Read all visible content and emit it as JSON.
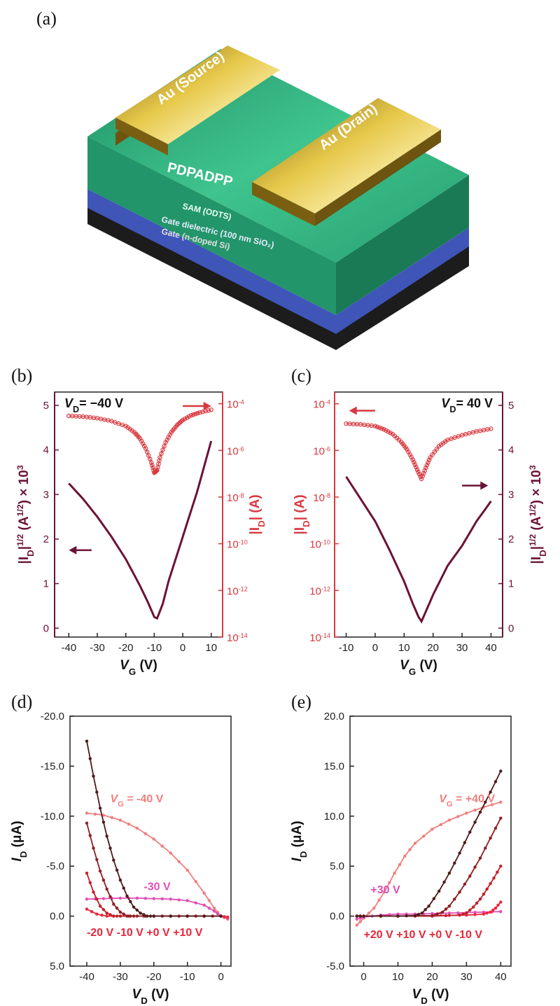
{
  "panels": {
    "a": "(a)",
    "b": "(b)",
    "c": "(c)",
    "d": "(d)",
    "e": "(e)"
  },
  "device": {
    "source_label": "Au (Source)",
    "drain_label": "Au (Drain)",
    "semiconductor_label": "PDPADPP",
    "sam_label": "SAM (ODTS)",
    "dielectric_label": "Gate dielectric (100 nm SiO₂)",
    "gate_label": "Gate (n-doped Si)",
    "colors": {
      "gold": "#c9a227",
      "green": "#2fae7a",
      "blue": "#3f55b8",
      "black": "#1c1c1c"
    }
  },
  "chart_data": [
    {
      "id": "b",
      "type": "line",
      "annotation": "V_D= −40 V",
      "annotation_parts": {
        "v": "V",
        "sub": "D",
        "rest": "= −40 V"
      },
      "xlabel": "V_G (V)",
      "xlabel_parts": {
        "v": "V",
        "sub": "G",
        "rest": " (V)"
      },
      "ylabel_left": "|I_D|^1/2 (A^1/2) × 10^3",
      "ylabel_left_parts": {
        "a": "|I",
        "sub": "D",
        "b": "|",
        "sup1": "1/2",
        "c": " (A",
        "sup2": "1/2",
        "d": ") × 10",
        "sup3": "3"
      },
      "ylabel_right": "|I_D| (A)",
      "ylabel_right_parts": {
        "a": "|I",
        "sub": "D",
        "b": "| (A)"
      },
      "xlim": [
        -45,
        14
      ],
      "xticks": [
        -40,
        -30,
        -20,
        -10,
        0,
        10
      ],
      "xtick_labels": [
        "-40",
        "-30",
        "-20",
        "-10",
        "0",
        "10"
      ],
      "ylim_left": [
        -0.2,
        5.3
      ],
      "yticks_left": [
        0,
        1,
        2,
        3,
        4,
        5
      ],
      "ytick_labels_left": [
        "0",
        "1",
        "2",
        "3",
        "4",
        "5"
      ],
      "ylim_right_exp": [
        -14,
        -3.5
      ],
      "yticks_right_exp": [
        -14,
        -12,
        -10,
        -8,
        -6,
        -4
      ],
      "ytick_labels_right": [
        {
          "base": "10",
          "exp": "-14"
        },
        {
          "base": "10",
          "exp": "-12"
        },
        {
          "base": "10",
          "exp": "-10"
        },
        {
          "base": "10",
          "exp": "-8"
        },
        {
          "base": "10",
          "exp": "-6"
        },
        {
          "base": "10",
          "exp": "-4"
        }
      ],
      "series": [
        {
          "axis": "left",
          "color": "#6b1238",
          "x": [
            -40,
            -35,
            -30,
            -25,
            -20,
            -15,
            -12,
            -10,
            -9,
            -7,
            -5,
            0,
            5,
            10
          ],
          "y": [
            3.25,
            2.9,
            2.5,
            2.05,
            1.55,
            0.95,
            0.55,
            0.25,
            0.22,
            0.55,
            1.05,
            2.05,
            3.05,
            4.2
          ]
        },
        {
          "axis": "right",
          "color": "#d8383f",
          "log": true,
          "x": [
            -40,
            -35,
            -30,
            -25,
            -20,
            -17,
            -15,
            -13,
            -11,
            -10,
            -9,
            -8,
            -6,
            -4,
            -2,
            0,
            3,
            6,
            10
          ],
          "y": [
            3e-05,
            2.8e-05,
            2.4e-05,
            1.8e-05,
            1.1e-05,
            6e-06,
            3.2e-06,
            1.2e-06,
            3e-07,
            1.1e-07,
            1.4e-07,
            5e-07,
            2.2e-06,
            6e-06,
            1.2e-05,
            2e-05,
            3.2e-05,
            4.2e-05,
            5.5e-05
          ]
        }
      ],
      "arrows": [
        {
          "axis": "left",
          "x_from": -32,
          "x_to": -40,
          "y": 1.75,
          "color": "#6b1238"
        },
        {
          "axis": "right_exp",
          "x_from": 0,
          "x_to": 10,
          "y": -4.1,
          "color": "#d8383f"
        }
      ]
    },
    {
      "id": "c",
      "type": "line",
      "annotation": "V_D= 40 V",
      "annotation_parts": {
        "v": "V",
        "sub": "D",
        "rest": "= 40 V"
      },
      "xlabel": "V_G (V)",
      "xlabel_parts": {
        "v": "V",
        "sub": "G",
        "rest": " (V)"
      },
      "ylabel_left": "|I_D| (A)",
      "ylabel_left_parts": {
        "a": "|I",
        "sub": "D",
        "b": "| (A)"
      },
      "ylabel_right": "|I_D|^1/2 (A^1/2) × 10^3",
      "ylabel_right_parts": {
        "a": "|I",
        "sub": "D",
        "b": "|",
        "sup1": "1/2",
        "c": " (A",
        "sup2": "1/2",
        "d": ") × 10",
        "sup3": "3"
      },
      "xlim": [
        -14,
        44
      ],
      "xticks": [
        -10,
        0,
        10,
        20,
        30,
        40
      ],
      "xtick_labels": [
        "-10",
        "0",
        "10",
        "20",
        "30",
        "40"
      ],
      "ylim_left_exp": [
        -14,
        -3.5
      ],
      "yticks_left_exp": [
        -14,
        -12,
        -10,
        -8,
        -6,
        -4
      ],
      "ytick_labels_left": [
        {
          "base": "10",
          "exp": "-14"
        },
        {
          "base": "10",
          "exp": "-12"
        },
        {
          "base": "10",
          "exp": "-10"
        },
        {
          "base": "10",
          "exp": "-8"
        },
        {
          "base": "10",
          "exp": "-6"
        },
        {
          "base": "10",
          "exp": "-4"
        }
      ],
      "ylim_right": [
        -0.2,
        5.3
      ],
      "yticks_right": [
        0,
        1,
        2,
        3,
        4,
        5
      ],
      "ytick_labels_right": [
        "0",
        "1",
        "2",
        "3",
        "4",
        "5"
      ],
      "series": [
        {
          "axis": "right",
          "color": "#6b1238",
          "x": [
            -10,
            -5,
            0,
            5,
            10,
            13,
            15,
            16,
            17,
            20,
            25,
            30,
            35,
            40
          ],
          "y": [
            3.4,
            2.9,
            2.4,
            1.75,
            1.05,
            0.55,
            0.25,
            0.15,
            0.3,
            0.75,
            1.4,
            1.85,
            2.4,
            2.85
          ]
        },
        {
          "axis": "left",
          "color": "#d8383f",
          "log": true,
          "x": [
            -10,
            -5,
            0,
            3,
            6,
            9,
            11,
            13,
            14.5,
            16,
            17.5,
            19,
            22,
            25,
            30,
            35,
            40
          ],
          "y": [
            1.4e-05,
            1.3e-05,
            1.1e-05,
            8e-06,
            5e-06,
            2.3e-06,
            1.1e-06,
            4e-07,
            1.5e-07,
            6e-08,
            1.8e-07,
            5e-07,
            1.5e-06,
            2.8e-06,
            4.5e-06,
            6.5e-06,
            8.5e-06
          ]
        }
      ],
      "arrows": [
        {
          "axis": "left_exp",
          "x_from": 0,
          "x_to": -9,
          "y": -4.3,
          "color": "#d8383f"
        },
        {
          "axis": "right",
          "x_from": 30,
          "x_to": 39,
          "y": 3.2,
          "color": "#6b1238"
        }
      ]
    },
    {
      "id": "d",
      "type": "line",
      "xlabel": "V_D (V)",
      "xlabel_parts": {
        "v": "V",
        "sub": "D",
        "rest": " (V)"
      },
      "ylabel": "I_D (μA)",
      "ylabel_parts": {
        "v": "I",
        "sub": "D",
        "rest": " (μA)"
      },
      "xlim": [
        -45,
        3
      ],
      "xticks": [
        -40,
        -30,
        -20,
        -10,
        0
      ],
      "xtick_labels": [
        "-40",
        "-30",
        "-20",
        "-10",
        "0"
      ],
      "ylim": [
        5.0,
        -20.0
      ],
      "yticks": [
        -20,
        -15,
        -10,
        -5,
        0,
        5
      ],
      "ytick_labels": [
        "-20.0",
        "-15.0",
        "-10.0",
        "-5.0",
        "0.0",
        "5.0"
      ],
      "series": [
        {
          "name": "V_G = -40 V",
          "color": "#f07f7f",
          "x": [
            -40,
            -35,
            -30,
            -25,
            -20,
            -15,
            -10,
            -5,
            -2,
            0,
            2
          ],
          "y": [
            -10.3,
            -10.1,
            -9.6,
            -8.8,
            -7.7,
            -6.3,
            -4.6,
            -2.3,
            -0.8,
            0.0,
            0.3
          ]
        },
        {
          "name": "-30 V",
          "color": "#e14fb5",
          "x": [
            -40,
            -35,
            -30,
            -25,
            -20,
            -15,
            -10,
            -5,
            -2,
            0,
            2
          ],
          "y": [
            -1.7,
            -1.75,
            -1.8,
            -1.8,
            -1.75,
            -1.7,
            -1.55,
            -1.1,
            -0.5,
            0.0,
            0.2
          ]
        },
        {
          "name": "-20 V",
          "color": "#e8283c",
          "x": [
            -40,
            -37,
            -34,
            -30,
            -25,
            -20,
            -15,
            -10,
            -5,
            0,
            2
          ],
          "y": [
            -0.7,
            -0.2,
            0.0,
            0.0,
            0.0,
            0.0,
            0.0,
            0.0,
            0.0,
            0.0,
            0.1
          ]
        },
        {
          "name": "-10 V",
          "color": "#c21f2a",
          "x": [
            -40,
            -38,
            -36,
            -34,
            -32,
            -30,
            -25,
            -20,
            -15,
            -10,
            -5,
            0
          ],
          "y": [
            -4.3,
            -2.4,
            -1.0,
            -0.3,
            0.0,
            0.0,
            0.0,
            0.0,
            0.0,
            0.0,
            0.0,
            0.0
          ]
        },
        {
          "name": "+0 V",
          "color": "#8e1f23",
          "x": [
            -40,
            -38,
            -36,
            -34,
            -32,
            -30,
            -28,
            -26,
            -20,
            -10,
            0
          ],
          "y": [
            -9.3,
            -6.8,
            -4.5,
            -2.7,
            -1.2,
            -0.4,
            0.0,
            0.0,
            0.0,
            0.0,
            0.0
          ]
        },
        {
          "name": "+10 V",
          "color": "#4f1a1a",
          "x": [
            -40,
            -38,
            -36,
            -34,
            -32,
            -30,
            -28,
            -26,
            -24,
            -22,
            -20,
            -10,
            0
          ],
          "y": [
            -17.5,
            -14.0,
            -10.8,
            -8.0,
            -5.6,
            -3.6,
            -2.0,
            -0.9,
            -0.3,
            0.0,
            0.0,
            0.0,
            0.0
          ]
        }
      ],
      "labels": [
        {
          "text": "V_G = -40 V",
          "parts": {
            "v": "V",
            "sub": "G",
            "rest": " = -40 V"
          },
          "x": -33,
          "y": -11.4,
          "color": "#f07f7f"
        },
        {
          "text": "-30 V",
          "x": -23,
          "y": -2.6,
          "color": "#e14fb5"
        },
        {
          "text": "-20 V -10 V +0 V +10 V",
          "x": -40,
          "y": 2.0,
          "color": "#e8283c"
        }
      ]
    },
    {
      "id": "e",
      "type": "line",
      "xlabel": "V_D (V)",
      "xlabel_parts": {
        "v": "V",
        "sub": "D",
        "rest": " (V)"
      },
      "ylabel": "I_D (μA)",
      "ylabel_parts": {
        "v": "I",
        "sub": "D",
        "rest": " (μA)"
      },
      "xlim": [
        -4,
        43
      ],
      "xticks": [
        0,
        10,
        20,
        30,
        40
      ],
      "xtick_labels": [
        "0",
        "10",
        "20",
        "30",
        "40"
      ],
      "ylim": [
        -5.0,
        20.0
      ],
      "yticks": [
        -5,
        0,
        5,
        10,
        15,
        20
      ],
      "ytick_labels": [
        "-5.0",
        "0.0",
        "5.0",
        "10.0",
        "15.0",
        "20.0"
      ],
      "series": [
        {
          "name": "V_G = +40 V",
          "color": "#f07f7f",
          "x": [
            -2,
            0,
            3,
            6,
            9,
            12,
            15,
            20,
            25,
            30,
            35,
            40
          ],
          "y": [
            -0.9,
            -0.2,
            0.8,
            2.4,
            4.3,
            6.0,
            7.3,
            8.7,
            9.6,
            10.3,
            10.9,
            11.4
          ]
        },
        {
          "name": "+30 V",
          "color": "#e14fb5",
          "x": [
            -2,
            0,
            5,
            10,
            15,
            20,
            25,
            30,
            35,
            40
          ],
          "y": [
            -0.3,
            -0.1,
            0.1,
            0.2,
            0.2,
            0.25,
            0.3,
            0.35,
            0.4,
            0.45
          ]
        },
        {
          "name": "+20 V",
          "color": "#e8283c",
          "x": [
            -2,
            0,
            10,
            20,
            30,
            35,
            37,
            38.5,
            40
          ],
          "y": [
            0.0,
            0.0,
            0.0,
            0.05,
            0.1,
            0.2,
            0.4,
            0.8,
            1.4
          ]
        },
        {
          "name": "+10 V",
          "color": "#c21f2a",
          "x": [
            -2,
            0,
            10,
            20,
            28,
            30,
            32,
            34,
            36,
            38,
            40
          ],
          "y": [
            0.0,
            0.0,
            0.0,
            0.0,
            0.1,
            0.3,
            0.9,
            1.7,
            2.7,
            3.8,
            5.0
          ]
        },
        {
          "name": "+0 V",
          "color": "#8e1f23",
          "x": [
            -2,
            0,
            10,
            20,
            23,
            25,
            28,
            31,
            34,
            37,
            40
          ],
          "y": [
            0.0,
            0.0,
            0.0,
            0.05,
            0.4,
            1.0,
            2.4,
            4.0,
            5.8,
            7.8,
            9.8
          ]
        },
        {
          "name": "-10 V",
          "color": "#4f1a1a",
          "x": [
            -2,
            0,
            10,
            15,
            17,
            19,
            22,
            25,
            28,
            31,
            34,
            37,
            40
          ],
          "y": [
            0.0,
            0.0,
            0.0,
            0.05,
            0.3,
            1.0,
            2.5,
            4.3,
            6.3,
            8.4,
            10.4,
            12.4,
            14.5
          ]
        }
      ],
      "labels": [
        {
          "text": "V_G = +40 V",
          "parts": {
            "v": "V",
            "sub": "G",
            "rest": " = +40 V"
          },
          "x": 22,
          "y": 11.4,
          "color": "#f07f7f"
        },
        {
          "text": "+30 V",
          "x": 2,
          "y": 2.3,
          "color": "#e14fb5"
        },
        {
          "text": "+20 V +10 V +0 V -10 V",
          "x": 0,
          "y": -2.2,
          "color": "#e8283c"
        }
      ]
    }
  ]
}
